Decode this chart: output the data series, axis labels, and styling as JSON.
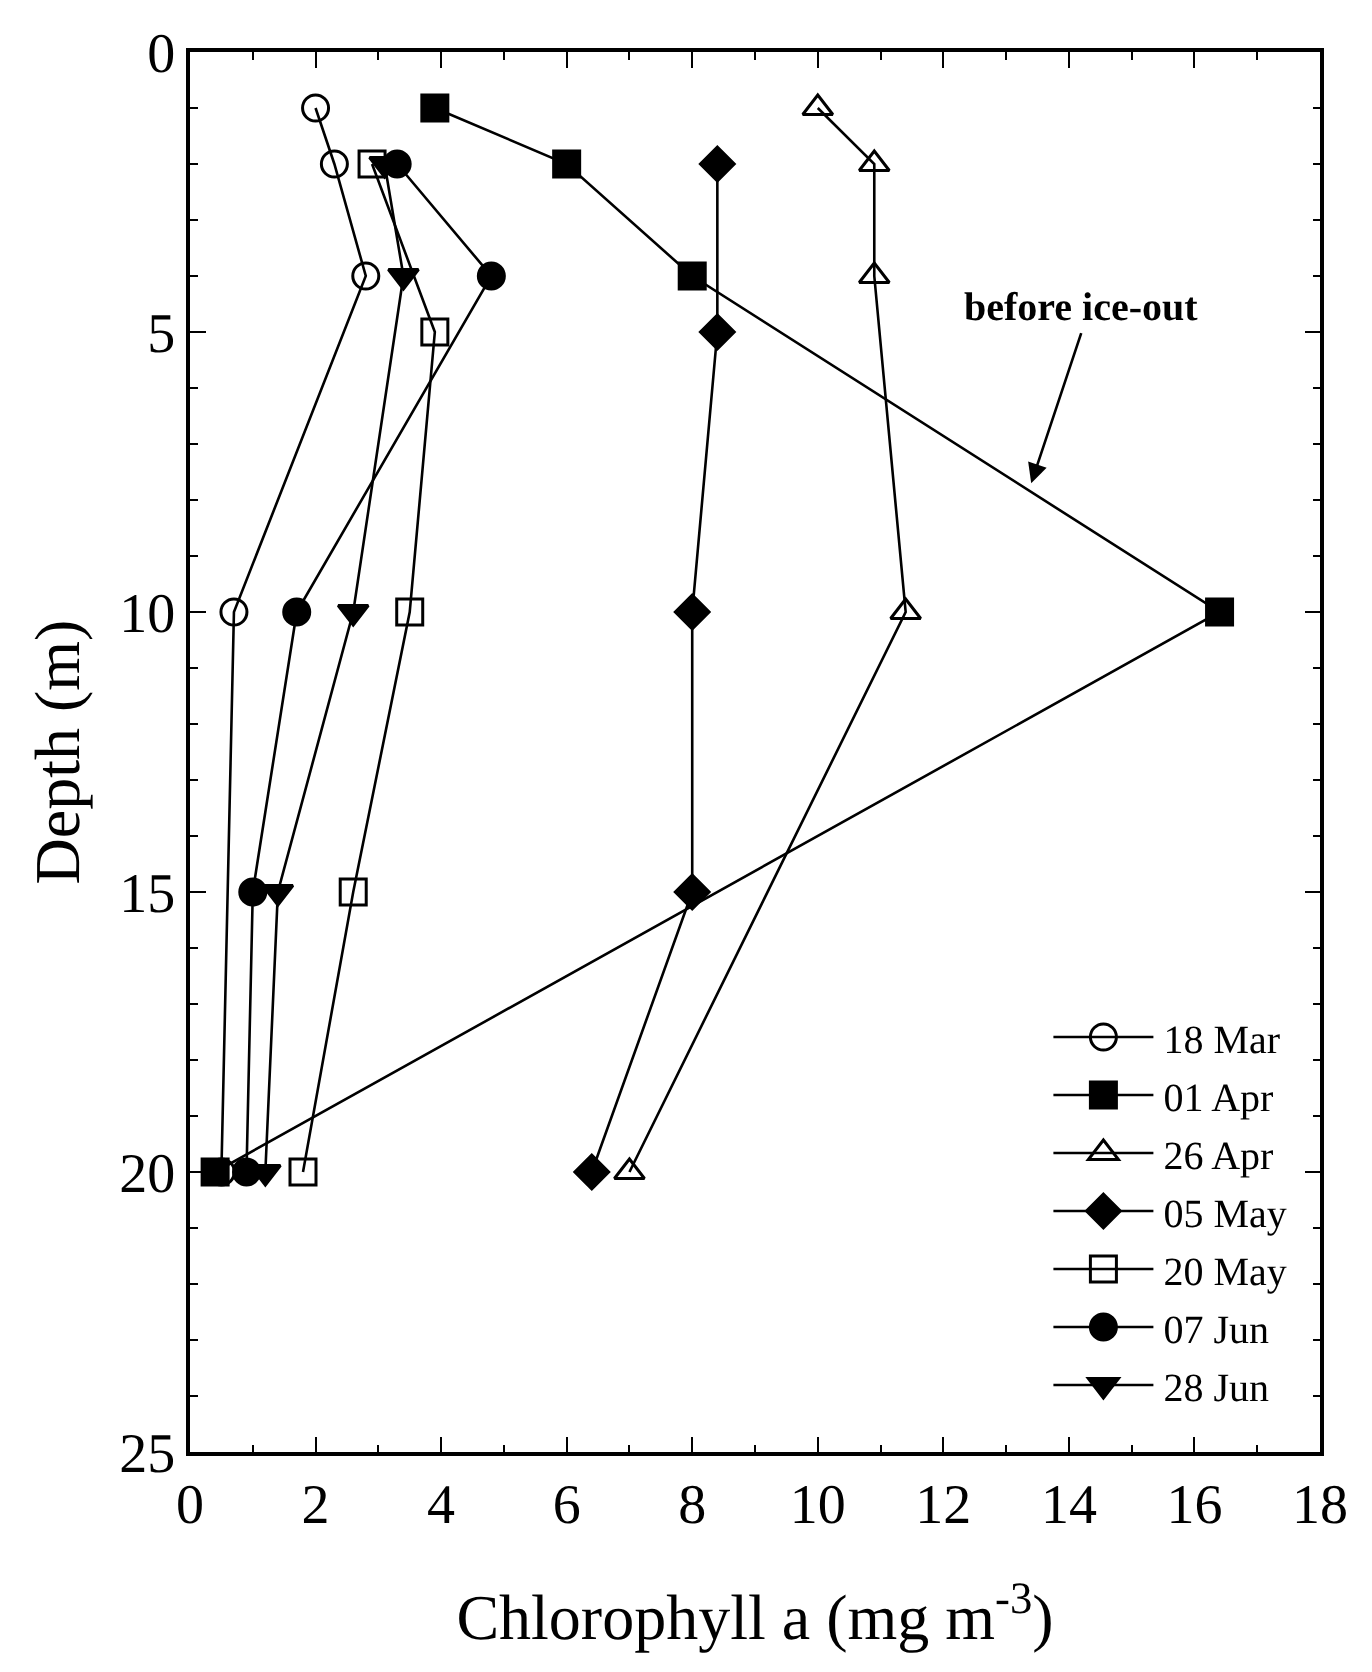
{
  "chart_data": {
    "type": "line",
    "xlabel": "Chlorophyll a (mg m$^{-3}$)",
    "ylabel": "Depth (m)",
    "xlim": [
      0,
      18
    ],
    "ylim": [
      25,
      0
    ],
    "xticks": [
      0,
      {
        "value": 1,
        "label": null
      },
      2,
      {
        "value": 3,
        "label": null
      },
      4,
      {
        "value": 5,
        "label": null
      },
      6,
      {
        "value": 7,
        "label": null
      },
      8,
      {
        "value": 9,
        "label": null
      },
      10,
      {
        "value": 11,
        "label": null
      },
      12,
      {
        "value": 13,
        "label": null
      },
      14,
      {
        "value": 15,
        "label": null
      },
      16,
      {
        "value": 17,
        "label": null
      },
      18
    ],
    "yticks": [
      0,
      {
        "value": 1,
        "label": null
      },
      {
        "value": 2,
        "label": null
      },
      {
        "value": 3,
        "label": null
      },
      {
        "value": 4,
        "label": null
      },
      5,
      {
        "value": 6,
        "label": null
      },
      {
        "value": 7,
        "label": null
      },
      {
        "value": 8,
        "label": null
      },
      {
        "value": 9,
        "label": null
      },
      10,
      {
        "value": 11,
        "label": null
      },
      {
        "value": 12,
        "label": null
      },
      {
        "value": 13,
        "label": null
      },
      {
        "value": 14,
        "label": null
      },
      15,
      {
        "value": 16,
        "label": null
      },
      {
        "value": 17,
        "label": null
      },
      {
        "value": 18,
        "label": null
      },
      {
        "value": 19,
        "label": null
      },
      20,
      {
        "value": 21,
        "label": null
      },
      {
        "value": 22,
        "label": null
      },
      {
        "value": 23,
        "label": null
      },
      {
        "value": 24,
        "label": null
      },
      25
    ],
    "legend": "bottom right",
    "line_style": "solid",
    "annotations": [
      {
        "text": "before ice-out",
        "x": 13.4,
        "y": 7.7
      }
    ],
    "series": [
      {
        "name": "18 Mar",
        "color": "#000000",
        "marker": "circle-open",
        "x": [
          2.0,
          2.3,
          2.8,
          0.7,
          0.5
        ],
        "values": [
          1,
          2,
          4,
          10,
          20
        ]
      },
      {
        "name": "01 Apr",
        "color": "#000000",
        "marker": "square",
        "x": [
          3.9,
          6.0,
          8.0,
          16.4,
          0.4
        ],
        "values": [
          1,
          2,
          4,
          10,
          20
        ]
      },
      {
        "name": "26 Apr",
        "color": "#000000",
        "marker": "triangle-up-open",
        "x": [
          10.0,
          10.9,
          10.9,
          11.4,
          7.0
        ],
        "values": [
          1,
          2,
          4,
          10,
          20
        ]
      },
      {
        "name": "05 May",
        "color": "#000000",
        "marker": "diamond",
        "x": [
          8.4,
          8.4,
          8.0,
          8.0,
          6.4
        ],
        "values": [
          2,
          5,
          10,
          15,
          20
        ]
      },
      {
        "name": "20 May",
        "color": "#000000",
        "marker": "square-open",
        "x": [
          2.9,
          3.9,
          3.5,
          2.6,
          1.8
        ],
        "values": [
          2,
          5,
          10,
          15,
          20
        ]
      },
      {
        "name": "07 Jun",
        "color": "#000000",
        "marker": "circle",
        "x": [
          3.3,
          4.8,
          1.7,
          1.0,
          0.9
        ],
        "values": [
          2,
          4,
          10,
          15,
          20
        ]
      },
      {
        "name": "28 Jun",
        "color": "#000000",
        "marker": "triangle-down",
        "x": [
          3.1,
          3.4,
          2.6,
          1.4,
          1.2
        ],
        "values": [
          2,
          4,
          10,
          15,
          20
        ]
      }
    ]
  }
}
